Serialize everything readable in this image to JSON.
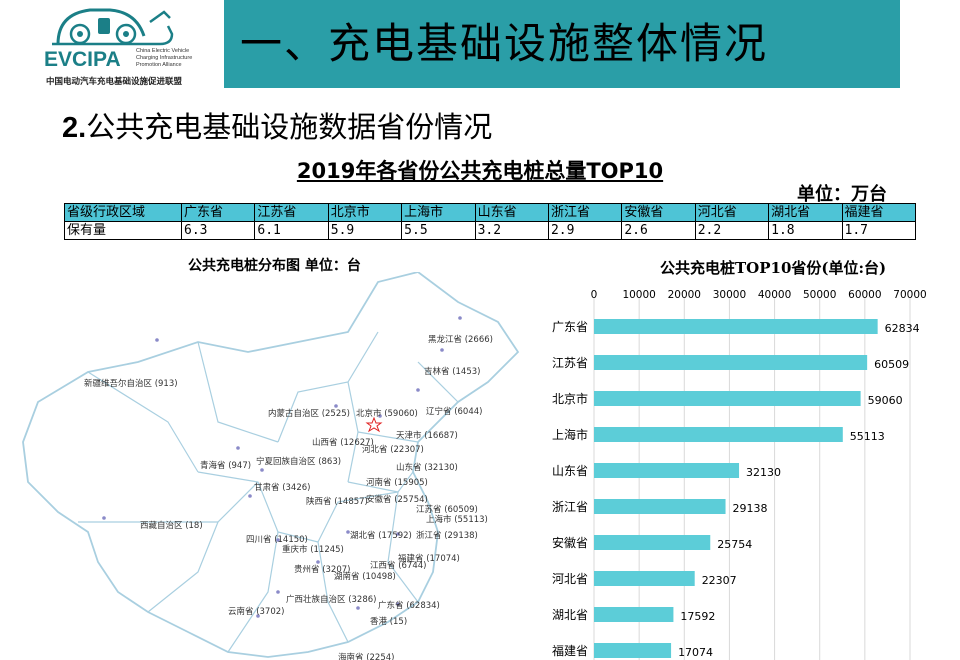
{
  "logo": {
    "brand": "EVCIPA",
    "english_name": [
      "China Electric Vehicle",
      "Charging Infrastructure",
      "Promotion Alliance"
    ],
    "chinese_name": "中国电动汽车充电基础设施促进联盟",
    "brand_color": "#1b7f87"
  },
  "header": {
    "title": "一、充电基础设施整体情况",
    "banner_color": "#2a9ea7"
  },
  "section": {
    "number": "2.",
    "heading": "公共充电基础设施数据省份情况"
  },
  "table": {
    "title": "2019年各省份公共充电桩总量TOP10",
    "unit": "单位：万台",
    "header_label": "省级行政区域",
    "row_label": "保有量",
    "header_color": "#4ec4d6",
    "provinces": [
      "广东省",
      "江苏省",
      "北京市",
      "上海市",
      "山东省",
      "浙江省",
      "安徽省",
      "河北省",
      "湖北省",
      "福建省"
    ],
    "values": [
      "6.3",
      "6.1",
      "5.9",
      "5.5",
      "3.2",
      "2.9",
      "2.6",
      "2.2",
      "1.8",
      "1.7"
    ]
  },
  "map": {
    "title": "公共充电桩分布图   单位：台",
    "labels": [
      {
        "text": "黑龙江省 (2666)"
      },
      {
        "text": "吉林省 (1453)"
      },
      {
        "text": "新疆维吾尔自治区 (913)"
      },
      {
        "text": "内蒙古自治区 (2525)"
      },
      {
        "text": "北京市 (59060)"
      },
      {
        "text": "辽宁省 (6044)"
      },
      {
        "text": "天津市 (16687)"
      },
      {
        "text": "山西省 (12627)"
      },
      {
        "text": "河北省 (22307)"
      },
      {
        "text": "青海省 (947)"
      },
      {
        "text": "宁夏回族自治区 (863)"
      },
      {
        "text": "山东省 (32130)"
      },
      {
        "text": "甘肃省 (3426)"
      },
      {
        "text": "河南省 (15905)"
      },
      {
        "text": "陕西省 (14857)"
      },
      {
        "text": "安徽省 (25754)"
      },
      {
        "text": "江苏省 (60509)"
      },
      {
        "text": "上海市 (55113)"
      },
      {
        "text": "西藏自治区 (18)"
      },
      {
        "text": "四川省 (14150)"
      },
      {
        "text": "湖北省 (17592)"
      },
      {
        "text": "浙江省 (29138)"
      },
      {
        "text": "重庆市 (11245)"
      },
      {
        "text": "福建省 (17074)"
      },
      {
        "text": "贵州省 (3207)"
      },
      {
        "text": "江西省 (6744)"
      },
      {
        "text": "湖南省 (10498)"
      },
      {
        "text": "广西壮族自治区 (3286)"
      },
      {
        "text": "广东省 (62834)"
      },
      {
        "text": "云南省 (3702)"
      },
      {
        "text": "香港 (15)"
      },
      {
        "text": "海南省 (2254)"
      }
    ]
  },
  "chart_data": {
    "type": "bar",
    "orientation": "horizontal",
    "title": "公共充电桩TOP10省份(单位:台)",
    "categories": [
      "广东省",
      "江苏省",
      "北京市",
      "上海市",
      "山东省",
      "浙江省",
      "安徽省",
      "河北省",
      "湖北省",
      "福建省"
    ],
    "values": [
      62834,
      60509,
      59060,
      55113,
      32130,
      29138,
      25754,
      22307,
      17592,
      17074
    ],
    "xlim": [
      0,
      70000
    ],
    "xticks": [
      0,
      10000,
      20000,
      30000,
      40000,
      50000,
      60000,
      70000
    ],
    "grid": true,
    "legend": "none",
    "bar_color": "#5ccdd8",
    "data_labels": true
  }
}
